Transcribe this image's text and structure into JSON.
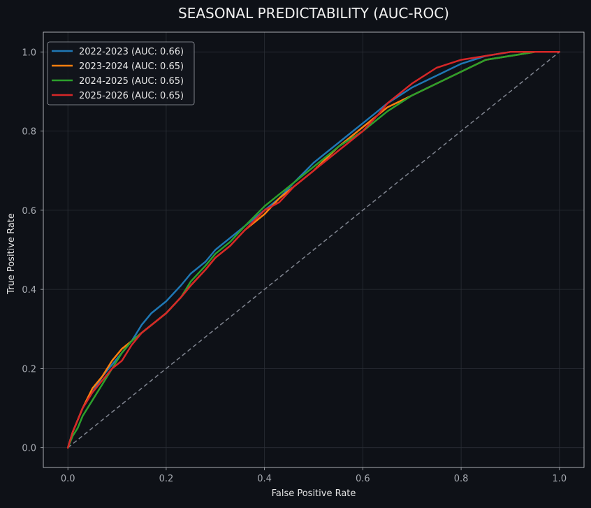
{
  "chart_data": {
    "type": "line",
    "title": "SEASONAL PREDICTABILITY (AUC-ROC)",
    "xlabel": "False Positive Rate",
    "ylabel": "True Positive Rate",
    "xlim": [
      -0.05,
      1.05
    ],
    "ylim": [
      -0.05,
      1.05
    ],
    "xticks": [
      0.0,
      0.2,
      0.4,
      0.6,
      0.8,
      1.0
    ],
    "yticks": [
      0.0,
      0.2,
      0.4,
      0.6,
      0.8,
      1.0
    ],
    "xtick_labels": [
      "0.0",
      "0.2",
      "0.4",
      "0.6",
      "0.8",
      "1.0"
    ],
    "ytick_labels": [
      "0.0",
      "0.2",
      "0.4",
      "0.6",
      "0.8",
      "1.0"
    ],
    "grid": true,
    "legend_position": "top-left",
    "colors": {
      "background": "#0e1117",
      "text": "#e6e6e6",
      "tick_text": "#a8acb3",
      "grid": "#2a2e36",
      "diagonal": "#808590"
    },
    "diagonal": {
      "x": [
        0,
        1
      ],
      "y": [
        0,
        1
      ]
    },
    "series": [
      {
        "name": "2022-2023 (AUC: 0.66)",
        "color": "#1f77b4",
        "x": [
          0,
          0.01,
          0.02,
          0.03,
          0.05,
          0.07,
          0.09,
          0.11,
          0.13,
          0.15,
          0.17,
          0.2,
          0.23,
          0.25,
          0.28,
          0.3,
          0.33,
          0.36,
          0.4,
          0.43,
          0.46,
          0.5,
          0.55,
          0.6,
          0.63,
          0.65,
          0.7,
          0.75,
          0.8,
          0.85,
          0.9,
          0.95,
          1.0
        ],
        "y": [
          0,
          0.04,
          0.07,
          0.1,
          0.14,
          0.18,
          0.21,
          0.24,
          0.27,
          0.31,
          0.34,
          0.37,
          0.41,
          0.44,
          0.47,
          0.5,
          0.53,
          0.56,
          0.6,
          0.63,
          0.67,
          0.72,
          0.77,
          0.82,
          0.85,
          0.87,
          0.91,
          0.94,
          0.97,
          0.99,
          1.0,
          1.0,
          1.0
        ]
      },
      {
        "name": "2023-2024 (AUC: 0.65)",
        "color": "#ff7f0e",
        "x": [
          0,
          0.01,
          0.02,
          0.03,
          0.05,
          0.07,
          0.09,
          0.11,
          0.13,
          0.15,
          0.17,
          0.2,
          0.23,
          0.25,
          0.28,
          0.3,
          0.33,
          0.36,
          0.4,
          0.43,
          0.46,
          0.5,
          0.55,
          0.6,
          0.63,
          0.65,
          0.7,
          0.75,
          0.8,
          0.85,
          0.9,
          0.95,
          1.0
        ],
        "y": [
          0,
          0.04,
          0.07,
          0.1,
          0.15,
          0.18,
          0.22,
          0.25,
          0.27,
          0.29,
          0.31,
          0.34,
          0.38,
          0.41,
          0.45,
          0.48,
          0.51,
          0.55,
          0.59,
          0.63,
          0.66,
          0.7,
          0.76,
          0.81,
          0.84,
          0.86,
          0.89,
          0.92,
          0.95,
          0.98,
          0.99,
          1.0,
          1.0
        ]
      },
      {
        "name": "2024-2025 (AUC: 0.65)",
        "color": "#2ca02c",
        "x": [
          0,
          0.01,
          0.02,
          0.03,
          0.05,
          0.07,
          0.09,
          0.11,
          0.13,
          0.15,
          0.17,
          0.2,
          0.23,
          0.25,
          0.28,
          0.3,
          0.33,
          0.36,
          0.4,
          0.43,
          0.46,
          0.5,
          0.55,
          0.6,
          0.63,
          0.65,
          0.7,
          0.75,
          0.8,
          0.85,
          0.9,
          0.95,
          1.0
        ],
        "y": [
          0,
          0.03,
          0.05,
          0.08,
          0.12,
          0.16,
          0.2,
          0.24,
          0.27,
          0.29,
          0.31,
          0.34,
          0.38,
          0.42,
          0.46,
          0.49,
          0.52,
          0.56,
          0.61,
          0.64,
          0.67,
          0.71,
          0.76,
          0.8,
          0.83,
          0.85,
          0.89,
          0.92,
          0.95,
          0.98,
          0.99,
          1.0,
          1.0
        ]
      },
      {
        "name": "2025-2026 (AUC: 0.65)",
        "color": "#d62728",
        "x": [
          0,
          0.01,
          0.02,
          0.03,
          0.05,
          0.07,
          0.09,
          0.11,
          0.13,
          0.15,
          0.17,
          0.2,
          0.23,
          0.25,
          0.28,
          0.3,
          0.33,
          0.36,
          0.4,
          0.43,
          0.46,
          0.5,
          0.55,
          0.6,
          0.63,
          0.65,
          0.7,
          0.75,
          0.8,
          0.85,
          0.9,
          0.95,
          1.0
        ],
        "y": [
          0,
          0.04,
          0.07,
          0.1,
          0.14,
          0.17,
          0.2,
          0.22,
          0.26,
          0.29,
          0.31,
          0.34,
          0.38,
          0.41,
          0.45,
          0.48,
          0.51,
          0.55,
          0.6,
          0.62,
          0.66,
          0.7,
          0.75,
          0.8,
          0.84,
          0.87,
          0.92,
          0.96,
          0.98,
          0.99,
          1.0,
          1.0,
          1.0
        ]
      }
    ]
  }
}
